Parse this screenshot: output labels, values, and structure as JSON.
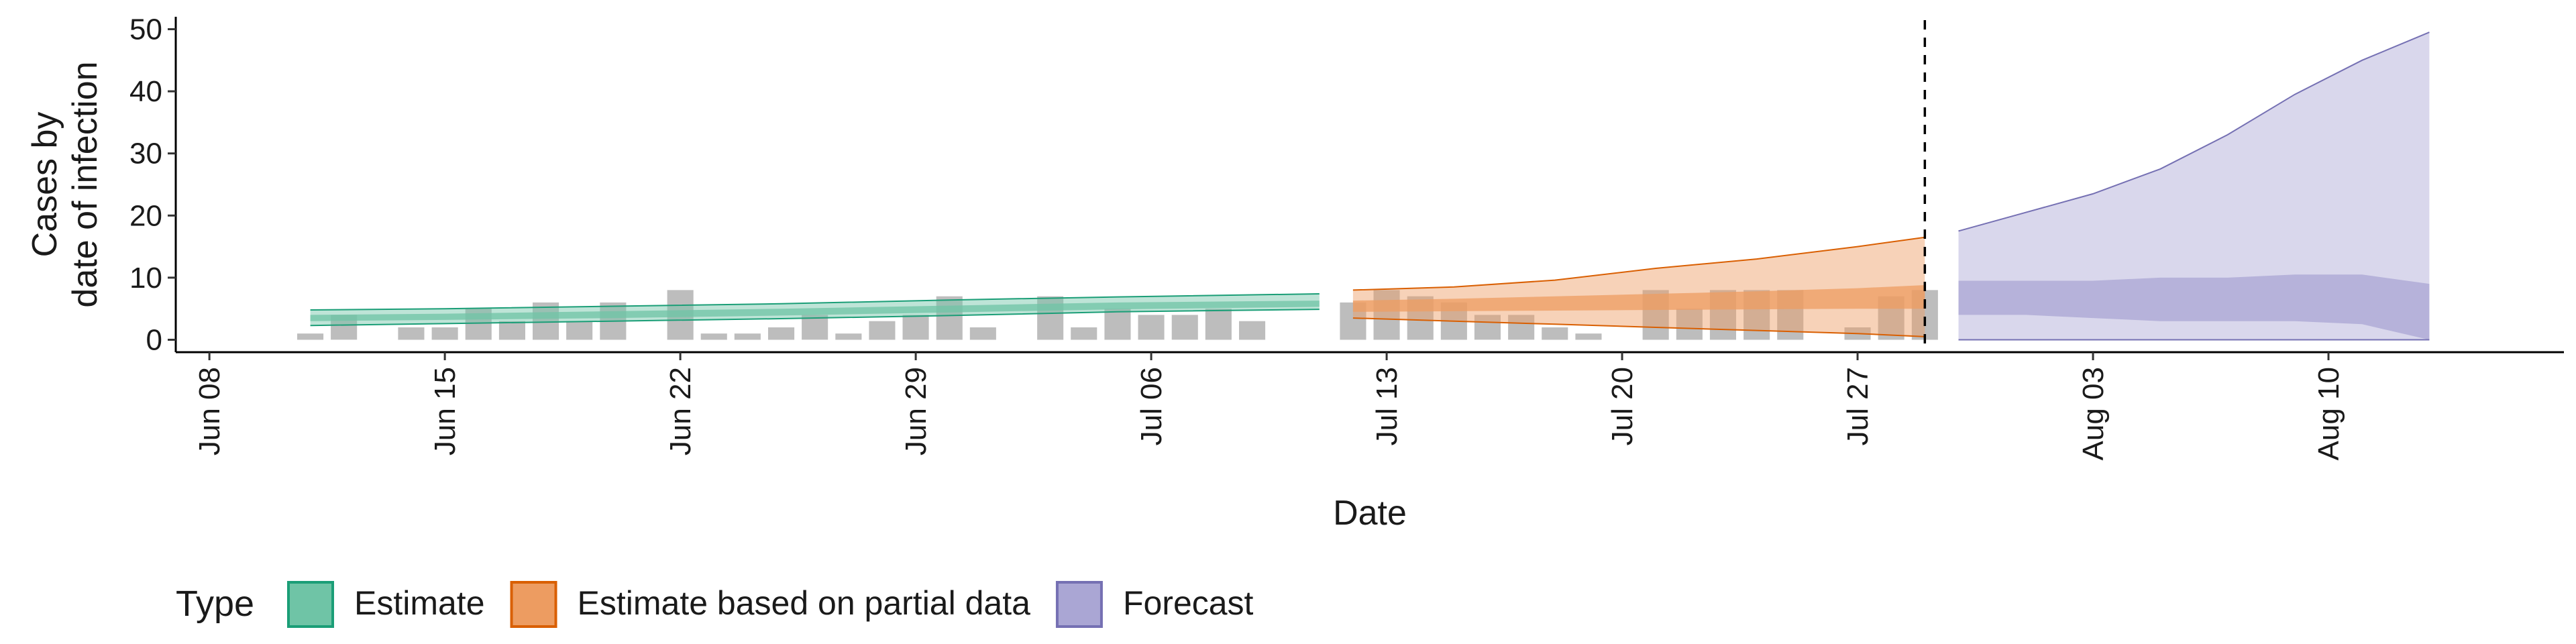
{
  "chart_data": {
    "type": "area",
    "title": "",
    "xlabel": "Date",
    "ylabel": [
      "Cases by",
      "date of infection"
    ],
    "x_range": [
      "2020-06-07",
      "2020-08-17"
    ],
    "ylim": [
      -2,
      52
    ],
    "y_ticks": [
      0,
      10,
      20,
      30,
      40,
      50
    ],
    "x_ticks": [
      {
        "date": "2020-06-08",
        "label": "Jun 08"
      },
      {
        "date": "2020-06-15",
        "label": "Jun 15"
      },
      {
        "date": "2020-06-22",
        "label": "Jun 22"
      },
      {
        "date": "2020-06-29",
        "label": "Jun 29"
      },
      {
        "date": "2020-07-06",
        "label": "Jul 06"
      },
      {
        "date": "2020-07-13",
        "label": "Jul 13"
      },
      {
        "date": "2020-07-20",
        "label": "Jul 20"
      },
      {
        "date": "2020-07-27",
        "label": "Jul 27"
      },
      {
        "date": "2020-08-03",
        "label": "Aug 03"
      },
      {
        "date": "2020-08-10",
        "label": "Aug 10"
      }
    ],
    "grid": false,
    "vline_date": "2020-07-29",
    "legend": {
      "title": "Type",
      "position": "bottom",
      "items": [
        {
          "label": "Estimate",
          "fill": "#6fc4a6",
          "stroke": "#1b9e77"
        },
        {
          "label": "Estimate based on partial data",
          "fill": "#ed9c61",
          "stroke": "#d95f02"
        },
        {
          "label": "Forecast",
          "fill": "#aaa6d4",
          "stroke": "#7570b3"
        }
      ]
    },
    "bars": {
      "color": "#bdbdbd",
      "start": "2020-06-11",
      "values": [
        1,
        4,
        0,
        2,
        2,
        5,
        3,
        6,
        3,
        6,
        0,
        8,
        1,
        1,
        2,
        4,
        1,
        3,
        4,
        7,
        2,
        0,
        7,
        2,
        5,
        4,
        4,
        5,
        3,
        0,
        0,
        6,
        8,
        7,
        6,
        4,
        4,
        2,
        1,
        0,
        8,
        5,
        8,
        8,
        8,
        0,
        2,
        7,
        8
      ]
    },
    "series": [
      {
        "type": "Estimate",
        "dates": [
          "2020-06-11",
          "2020-06-15",
          "2020-06-20",
          "2020-06-25",
          "2020-06-30",
          "2020-07-05",
          "2020-07-11"
        ],
        "outer": {
          "lower": [
            2.3,
            2.6,
            3.0,
            3.4,
            3.9,
            4.5,
            4.9
          ],
          "upper": [
            4.8,
            5.0,
            5.4,
            5.8,
            6.4,
            6.9,
            7.4
          ]
        },
        "inner": {
          "lower": [
            3.0,
            3.2,
            3.5,
            3.9,
            4.4,
            4.9,
            5.3
          ],
          "upper": [
            4.0,
            4.2,
            4.6,
            5.0,
            5.5,
            6.0,
            6.3
          ]
        }
      },
      {
        "type": "Estimate based on partial data",
        "dates": [
          "2020-07-12",
          "2020-07-15",
          "2020-07-18",
          "2020-07-21",
          "2020-07-24",
          "2020-07-27",
          "2020-07-29"
        ],
        "outer": {
          "lower": [
            3.5,
            3.0,
            2.5,
            2.0,
            1.5,
            1.0,
            0.5
          ],
          "upper": [
            8.0,
            8.5,
            9.6,
            11.5,
            13.0,
            15.0,
            16.5
          ]
        },
        "inner": {
          "lower": [
            4.5,
            4.6,
            4.7,
            4.8,
            4.9,
            5.0,
            5.0
          ],
          "upper": [
            6.3,
            6.6,
            7.0,
            7.4,
            7.8,
            8.3,
            8.8
          ]
        }
      },
      {
        "type": "Forecast",
        "dates": [
          "2020-07-30",
          "2020-08-01",
          "2020-08-03",
          "2020-08-05",
          "2020-08-07",
          "2020-08-09",
          "2020-08-11",
          "2020-08-13"
        ],
        "outer": {
          "lower": [
            0,
            0,
            0,
            0,
            0,
            0,
            0,
            0
          ],
          "upper": [
            17.5,
            20.5,
            23.5,
            27.5,
            33.0,
            39.5,
            45.0,
            49.5
          ]
        },
        "inner": {
          "lower": [
            4.0,
            4.0,
            3.5,
            3.0,
            3.0,
            3.0,
            2.5,
            0.0
          ],
          "upper": [
            9.5,
            9.5,
            9.5,
            10.0,
            10.0,
            10.5,
            10.5,
            9.0
          ]
        }
      }
    ]
  }
}
